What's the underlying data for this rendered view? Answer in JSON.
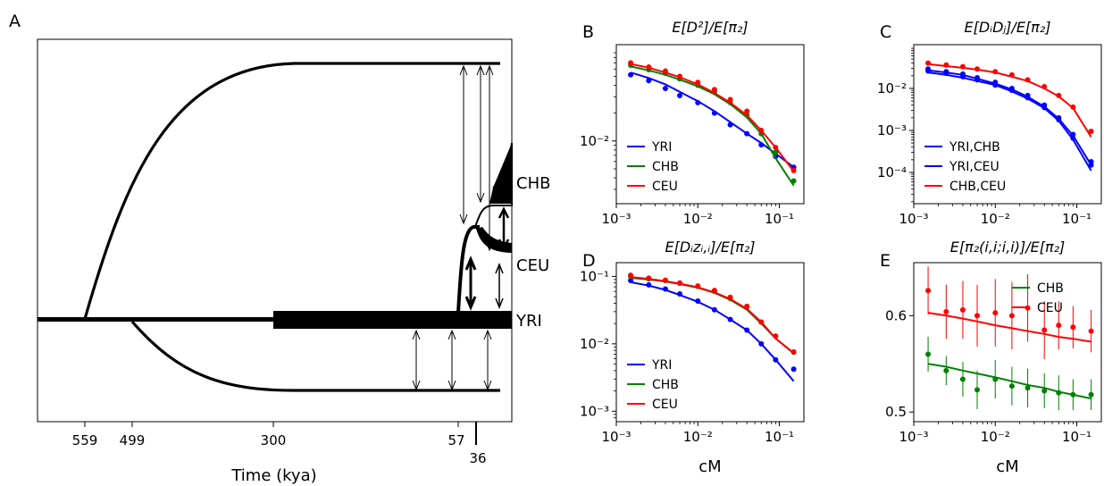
{
  "colors": {
    "YRI": "#0000ff",
    "CHB": "#008000",
    "CEU": "#ff0000"
  },
  "panel_a": {
    "letter": "A",
    "xlabel": "Time (kya)",
    "time_ticks": [
      "559",
      "499",
      "300",
      "57",
      "36"
    ],
    "population_labels": [
      "CHB",
      "CEU",
      "YRI"
    ]
  },
  "chart_data": [
    {
      "panel": "B",
      "type": "line",
      "title": "E[D²]/E[π₂]",
      "x": [
        0.0015,
        0.0025,
        0.004,
        0.006,
        0.01,
        0.016,
        0.025,
        0.04,
        0.06,
        0.09,
        0.15
      ],
      "xscale": "log",
      "yscale": "log",
      "xlim": [
        0.001,
        0.2
      ],
      "ylim": [
        0.0021,
        0.11
      ],
      "xticks": [
        "10⁻³",
        "10⁻²",
        "10⁻¹"
      ],
      "yticks": [
        "10⁻²"
      ],
      "legend": "lower-left",
      "series": [
        {
          "name": "YRI",
          "model": [
            0.055,
            0.048,
            0.041,
            0.034,
            0.027,
            0.021,
            0.016,
            0.012,
            0.0095,
            0.0073,
            0.0052
          ],
          "points": [
            0.052,
            0.045,
            0.037,
            0.031,
            0.026,
            0.02,
            0.015,
            0.012,
            0.0091,
            0.0068,
            0.0052
          ]
        },
        {
          "name": "CHB",
          "model": [
            0.064,
            0.058,
            0.052,
            0.046,
            0.039,
            0.032,
            0.025,
            0.018,
            0.012,
            0.0065,
            0.0033
          ],
          "points": [
            0.066,
            0.059,
            0.054,
            0.047,
            0.04,
            0.034,
            0.026,
            0.019,
            0.012,
            0.0075,
            0.0037
          ]
        },
        {
          "name": "CEU",
          "model": [
            0.068,
            0.062,
            0.055,
            0.049,
            0.041,
            0.033,
            0.026,
            0.019,
            0.013,
            0.0085,
            0.0047
          ],
          "points": [
            0.07,
            0.063,
            0.057,
            0.05,
            0.043,
            0.036,
            0.028,
            0.021,
            0.013,
            0.0085,
            0.0048
          ]
        }
      ]
    },
    {
      "panel": "C",
      "type": "line",
      "title": "E[DᵢDⱼ]/E[π₂]",
      "x": [
        0.0015,
        0.0025,
        0.004,
        0.006,
        0.01,
        0.016,
        0.025,
        0.04,
        0.06,
        0.09,
        0.15
      ],
      "xscale": "log",
      "yscale": "log",
      "xlim": [
        0.001,
        0.2
      ],
      "ylim": [
        1.8e-05,
        0.11
      ],
      "xticks": [
        "10⁻³",
        "10⁻²",
        "10⁻¹"
      ],
      "yticks": [
        "10⁻⁴",
        "10⁻³",
        "10⁻²"
      ],
      "legend": "lower-left",
      "series": [
        {
          "name": "YRI,CHB",
          "model": [
            0.024,
            0.021,
            0.018,
            0.015,
            0.012,
            0.0085,
            0.0057,
            0.0034,
            0.0017,
            0.0006,
            0.00011
          ],
          "points": [
            0.026,
            0.023,
            0.019,
            0.016,
            0.012,
            0.009,
            0.006,
            0.0035,
            0.0018,
            0.00065,
            0.00015
          ]
        },
        {
          "name": "YRI,CEU",
          "model": [
            0.027,
            0.024,
            0.021,
            0.017,
            0.013,
            0.0095,
            0.0063,
            0.0037,
            0.0019,
            0.00075,
            0.00015
          ],
          "points": [
            0.029,
            0.025,
            0.022,
            0.018,
            0.014,
            0.01,
            0.0068,
            0.004,
            0.002,
            0.0008,
            0.00018
          ]
        },
        {
          "name": "CHB,CEU",
          "model": [
            0.038,
            0.034,
            0.031,
            0.028,
            0.024,
            0.019,
            0.015,
            0.01,
            0.0065,
            0.0034,
            0.0007
          ],
          "points": [
            0.04,
            0.036,
            0.033,
            0.029,
            0.025,
            0.021,
            0.016,
            0.011,
            0.0068,
            0.0036,
            0.00095
          ]
        }
      ]
    },
    {
      "panel": "D",
      "type": "line",
      "title": "E[Dᵢzᵢ,ᵢ]/E[π₂]",
      "x": [
        0.0015,
        0.0025,
        0.004,
        0.006,
        0.01,
        0.016,
        0.025,
        0.04,
        0.06,
        0.09,
        0.15
      ],
      "xscale": "log",
      "yscale": "log",
      "xlim": [
        0.001,
        0.2
      ],
      "ylim": [
        0.0007,
        0.16
      ],
      "xticks": [
        "10⁻³",
        "10⁻²",
        "10⁻¹"
      ],
      "yticks": [
        "10⁻³",
        "10⁻²",
        "10⁻¹"
      ],
      "xlabel": "cM",
      "legend": "lower-left",
      "series": [
        {
          "name": "YRI",
          "model": [
            0.082,
            0.073,
            0.063,
            0.053,
            0.042,
            0.032,
            0.023,
            0.016,
            0.01,
            0.0058,
            0.0028
          ],
          "points": [
            0.087,
            0.075,
            0.065,
            0.055,
            0.043,
            0.032,
            0.023,
            0.016,
            0.01,
            0.0058,
            0.0042
          ]
        },
        {
          "name": "CHB",
          "model": [
            0.095,
            0.09,
            0.084,
            0.077,
            0.068,
            0.057,
            0.045,
            0.032,
            0.02,
            0.012,
            0.0072
          ],
          "points": [
            0.1,
            0.092,
            0.087,
            0.079,
            0.071,
            0.06,
            0.047,
            0.035,
            0.021,
            0.013,
            0.0075
          ]
        },
        {
          "name": "CEU",
          "model": [
            0.098,
            0.092,
            0.085,
            0.078,
            0.069,
            0.058,
            0.046,
            0.033,
            0.021,
            0.012,
            0.0073
          ],
          "points": [
            0.104,
            0.094,
            0.088,
            0.08,
            0.072,
            0.062,
            0.049,
            0.036,
            0.021,
            0.013,
            0.0076
          ]
        }
      ]
    },
    {
      "panel": "E",
      "type": "line",
      "title": "E[π₂(i,i;i,i)]/E[π₂]",
      "x": [
        0.0015,
        0.0025,
        0.004,
        0.006,
        0.01,
        0.016,
        0.025,
        0.04,
        0.06,
        0.09,
        0.15
      ],
      "xscale": "log",
      "yscale": "linear",
      "xlim": [
        0.001,
        0.2
      ],
      "ylim": [
        0.49,
        0.655
      ],
      "xticks": [
        "10⁻³",
        "10⁻²",
        "10⁻¹"
      ],
      "yticks": [
        "0.5",
        "0.6"
      ],
      "ytick_values": [
        0.5,
        0.6
      ],
      "xlabel": "cM",
      "legend": "upper-right",
      "series": [
        {
          "name": "CHB",
          "model": [
            0.55,
            0.547,
            0.543,
            0.54,
            0.536,
            0.532,
            0.528,
            0.525,
            0.521,
            0.518,
            0.514
          ],
          "points": [
            0.56,
            0.543,
            0.534,
            0.523,
            0.534,
            0.527,
            0.525,
            0.522,
            0.52,
            0.518,
            0.518
          ],
          "err": [
            0.018,
            0.015,
            0.018,
            0.02,
            0.02,
            0.02,
            0.02,
            0.018,
            0.018,
            0.016,
            0.016
          ]
        },
        {
          "name": "CEU",
          "model": [
            0.603,
            0.6,
            0.597,
            0.594,
            0.59,
            0.587,
            0.584,
            0.581,
            0.578,
            0.576,
            0.573
          ],
          "points": [
            0.626,
            0.604,
            0.606,
            0.6,
            0.603,
            0.6,
            0.608,
            0.585,
            0.59,
            0.588,
            0.584
          ],
          "err": [
            0.025,
            0.028,
            0.03,
            0.032,
            0.035,
            0.035,
            0.035,
            0.03,
            0.025,
            0.022,
            0.022
          ]
        }
      ]
    }
  ]
}
